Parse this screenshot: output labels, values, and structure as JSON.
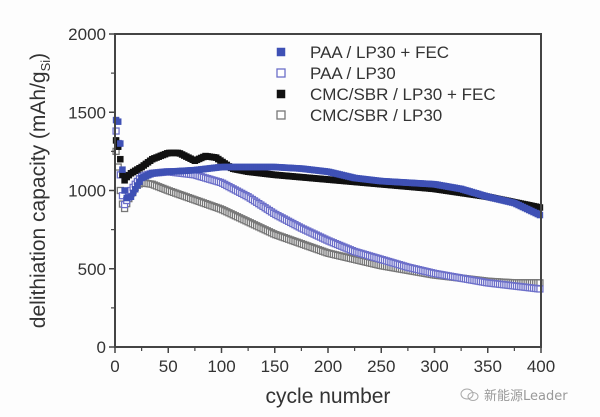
{
  "chart_data": {
    "type": "scatter",
    "title": "",
    "xlabel": "cycle number",
    "ylabel": "delithiation capacity (mAh/g",
    "ylabel_sub": "Si",
    "ylabel_close": ")",
    "xlim": [
      0,
      400
    ],
    "ylim": [
      0,
      2000
    ],
    "xticks": [
      0,
      50,
      100,
      150,
      200,
      250,
      300,
      350,
      400
    ],
    "yticks": [
      0,
      500,
      1000,
      1500,
      2000
    ],
    "xtick_labels": [
      "0",
      "50",
      "100",
      "150",
      "200",
      "250",
      "300",
      "350",
      "400"
    ],
    "ytick_labels": [
      "0",
      "500",
      "1000",
      "1500",
      "2000"
    ],
    "grid": false,
    "legend_position": "top-right",
    "series": [
      {
        "name": "PAA / LP30 + FEC",
        "marker": "filled-square",
        "color": "#3f51b5",
        "x": [
          1,
          3,
          5,
          8,
          10,
          15,
          20,
          25,
          35,
          50,
          75,
          100,
          125,
          150,
          175,
          200,
          225,
          250,
          275,
          300,
          325,
          350,
          375,
          400
        ],
        "y": [
          1450,
          1440,
          1300,
          1050,
          950,
          960,
          1020,
          1080,
          1110,
          1120,
          1130,
          1150,
          1150,
          1150,
          1140,
          1120,
          1080,
          1060,
          1050,
          1040,
          1010,
          960,
          920,
          840
        ]
      },
      {
        "name": "PAA / LP30",
        "marker": "open-square",
        "color": "#6c6fc9",
        "x": [
          1,
          3,
          5,
          8,
          10,
          15,
          20,
          25,
          35,
          50,
          75,
          100,
          125,
          150,
          175,
          200,
          225,
          250,
          275,
          300,
          325,
          350,
          375,
          400
        ],
        "y": [
          1380,
          1300,
          1100,
          900,
          920,
          1000,
          1050,
          1090,
          1110,
          1120,
          1100,
          1050,
          960,
          850,
          760,
          680,
          610,
          560,
          510,
          470,
          440,
          410,
          390,
          370
        ]
      },
      {
        "name": "CMC/SBR / LP30 + FEC",
        "marker": "filled-square",
        "color": "#111111",
        "x": [
          1,
          3,
          5,
          8,
          10,
          15,
          20,
          25,
          35,
          50,
          60,
          75,
          85,
          95,
          110,
          125,
          150,
          200,
          250,
          300,
          350,
          400
        ],
        "y": [
          1320,
          1280,
          1200,
          1050,
          1080,
          1110,
          1130,
          1150,
          1200,
          1240,
          1240,
          1190,
          1220,
          1210,
          1140,
          1120,
          1100,
          1070,
          1040,
          1010,
          960,
          890
        ]
      },
      {
        "name": "CMC/SBR / LP30",
        "marker": "open-square",
        "color": "#777777",
        "x": [
          1,
          3,
          5,
          8,
          10,
          15,
          20,
          25,
          35,
          50,
          75,
          100,
          125,
          150,
          175,
          200,
          225,
          250,
          275,
          300,
          325,
          350,
          375,
          400
        ],
        "y": [
          1250,
          1150,
          1000,
          870,
          900,
          980,
          1030,
          1050,
          1040,
          1000,
          940,
          880,
          800,
          720,
          660,
          600,
          560,
          520,
          490,
          460,
          440,
          420,
          410,
          410
        ]
      }
    ]
  },
  "watermark": {
    "icon": "wechat-icon",
    "text": "新能源Leader"
  }
}
